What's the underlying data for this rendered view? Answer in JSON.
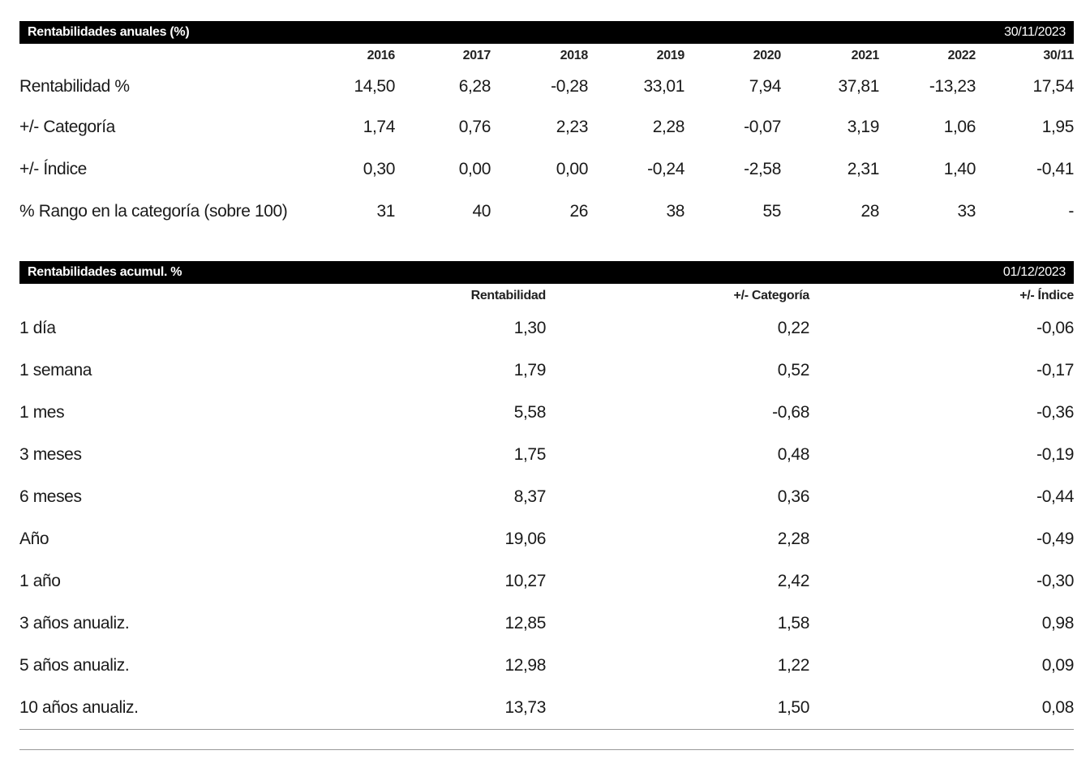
{
  "annual": {
    "title": "Rentabilidades anuales (%)",
    "date": "30/11/2023",
    "columns": [
      "2016",
      "2017",
      "2018",
      "2019",
      "2020",
      "2021",
      "2022",
      "30/11"
    ],
    "rows": [
      {
        "label": "Rentabilidad %",
        "values": [
          "14,50",
          "6,28",
          "-0,28",
          "33,01",
          "7,94",
          "37,81",
          "-13,23",
          "17,54"
        ]
      },
      {
        "label": "+/- Categoría",
        "values": [
          "1,74",
          "0,76",
          "2,23",
          "2,28",
          "-0,07",
          "3,19",
          "1,06",
          "1,95"
        ]
      },
      {
        "label": "+/- Índice",
        "values": [
          "0,30",
          "0,00",
          "0,00",
          "-0,24",
          "-2,58",
          "2,31",
          "1,40",
          "-0,41"
        ]
      },
      {
        "label": "% Rango en la categoría (sobre 100)",
        "values": [
          "31",
          "40",
          "26",
          "38",
          "55",
          "28",
          "33",
          "-"
        ]
      }
    ]
  },
  "cumul": {
    "title": "Rentabilidades acumul. %",
    "date": "01/12/2023",
    "columns": [
      "Rentabilidad",
      "+/- Categoría",
      "+/- Índice"
    ],
    "rows": [
      {
        "label": "1 día",
        "values": [
          "1,30",
          "0,22",
          "-0,06"
        ]
      },
      {
        "label": "1 semana",
        "values": [
          "1,79",
          "0,52",
          "-0,17"
        ]
      },
      {
        "label": "1 mes",
        "values": [
          "5,58",
          "-0,68",
          "-0,36"
        ]
      },
      {
        "label": "3 meses",
        "values": [
          "1,75",
          "0,48",
          "-0,19"
        ]
      },
      {
        "label": "6 meses",
        "values": [
          "8,37",
          "0,36",
          "-0,44"
        ]
      },
      {
        "label": "Año",
        "values": [
          "19,06",
          "2,28",
          "-0,49"
        ]
      },
      {
        "label": "1 año",
        "values": [
          "10,27",
          "2,42",
          "-0,30"
        ]
      },
      {
        "label": "3 años anualiz.",
        "values": [
          "12,85",
          "1,58",
          "0,98"
        ]
      },
      {
        "label": "5 años anualiz.",
        "values": [
          "12,98",
          "1,22",
          "0,09"
        ]
      },
      {
        "label": "10 años anualiz.",
        "values": [
          "13,73",
          "1,50",
          "0,08"
        ]
      }
    ]
  }
}
